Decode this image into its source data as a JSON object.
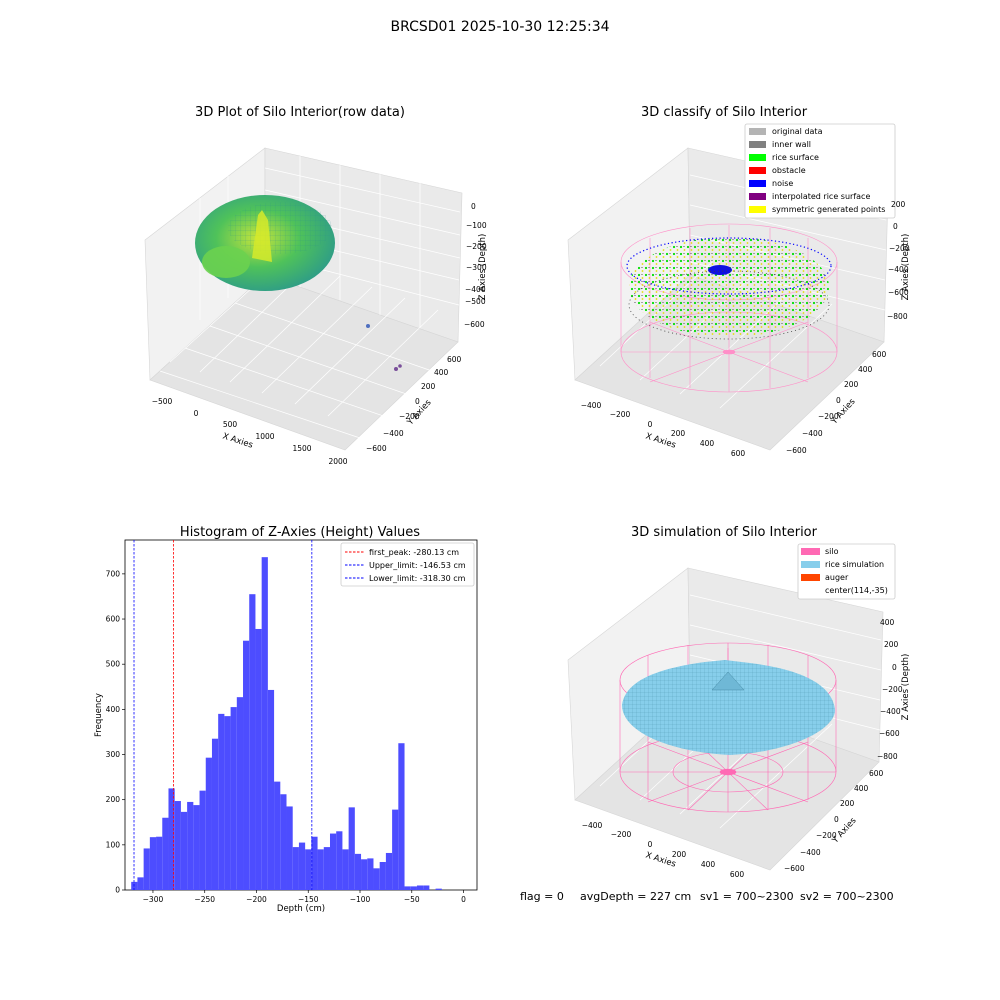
{
  "figure": {
    "suptitle": "BRCSD01 2025-10-30 12:25:34"
  },
  "status": {
    "flag": "flag = 0",
    "avg_depth": "avgDepth = 227 cm",
    "sv1": "sv1 = 700~2300",
    "sv2": "sv2 = 700~2300"
  },
  "panels": {
    "raw": {
      "title": "3D Plot of Silo Interior(row data)",
      "xlabel": "X Axies",
      "ylabel": "Y Axies",
      "zlabel": "Z Axies (Depth)",
      "xticks": [
        "−500",
        "0",
        "500",
        "1000",
        "1500",
        "2000"
      ],
      "yticks": [
        "−600",
        "−400",
        "−200",
        "0",
        "200",
        "400",
        "600"
      ],
      "zticks": [
        "0",
        "−100",
        "−200",
        "−300",
        "−400",
        "−500",
        "−600"
      ]
    },
    "classify": {
      "title": "3D classify of Silo Interior",
      "xlabel": "X Axies",
      "ylabel": "Y Axies",
      "zlabel": "Z Axies (Depth)",
      "xticks": [
        "−400",
        "−200",
        "0",
        "200",
        "400",
        "600"
      ],
      "yticks": [
        "−600",
        "−400",
        "−200",
        "0",
        "200",
        "400",
        "600"
      ],
      "zticks": [
        "200",
        "0",
        "−200",
        "−400",
        "−600",
        "−800"
      ],
      "legend": [
        {
          "label": "original data",
          "color": "#b4b4b4"
        },
        {
          "label": "inner wall",
          "color": "#808080"
        },
        {
          "label": "rice surface",
          "color": "#00ff00"
        },
        {
          "label": "obstacle",
          "color": "#ff0000"
        },
        {
          "label": "noise",
          "color": "#0000ff"
        },
        {
          "label": "interpolated rice surface",
          "color": "#800080"
        },
        {
          "label": "symmetric generated points",
          "color": "#ffff00"
        }
      ]
    },
    "simulation": {
      "title": "3D simulation of Silo Interior",
      "xlabel": "X Axies",
      "ylabel": "Y Axies",
      "zlabel": "Z Axies (Depth)",
      "xticks": [
        "−400",
        "−200",
        "0",
        "200",
        "400",
        "600"
      ],
      "yticks": [
        "−600",
        "−400",
        "−200",
        "0",
        "200",
        "400",
        "600"
      ],
      "zticks": [
        "400",
        "200",
        "0",
        "−200",
        "−400",
        "−600",
        "−800"
      ],
      "legend": [
        {
          "label": "silo",
          "color": "#ff69b4"
        },
        {
          "label": "rice simulation",
          "color": "#87ceeb"
        },
        {
          "label": "auger",
          "color": "#ff4500"
        },
        {
          "label": "center(114,-35)",
          "color": "none"
        }
      ]
    }
  },
  "chart_data": {
    "type": "bar",
    "title": "Histogram of Z-Axies (Height) Values",
    "xlabel": "Depth (cm)",
    "ylabel": "Frequency",
    "xlim": [
      -327,
      13
    ],
    "ylim": [
      0,
      775
    ],
    "bin_start": -321,
    "bin_width": 6,
    "values": [
      18,
      28,
      92,
      117,
      118,
      160,
      225,
      197,
      173,
      195,
      188,
      220,
      293,
      335,
      390,
      385,
      405,
      427,
      552,
      655,
      578,
      737,
      443,
      240,
      212,
      185,
      95,
      105,
      90,
      118,
      90,
      95,
      125,
      130,
      90,
      183,
      80,
      68,
      70,
      48,
      62,
      82,
      178,
      325,
      8,
      8,
      10,
      10,
      0,
      3
    ],
    "xticks": [
      -300,
      -250,
      -200,
      -150,
      -100,
      -50,
      0
    ],
    "yticks": [
      0,
      100,
      200,
      300,
      400,
      500,
      600,
      700
    ],
    "bar_color": "#4d4dff",
    "vlines": [
      {
        "label": "first_peak: -280.13 cm",
        "x": -280.13,
        "color": "#ff0000"
      },
      {
        "label": "Upper_limit: -146.53 cm",
        "x": -146.53,
        "color": "#0000ff"
      },
      {
        "label": "Lower_limit: -318.30 cm",
        "x": -318.3,
        "color": "#0000ff"
      }
    ],
    "legend_position": "upper-right"
  }
}
